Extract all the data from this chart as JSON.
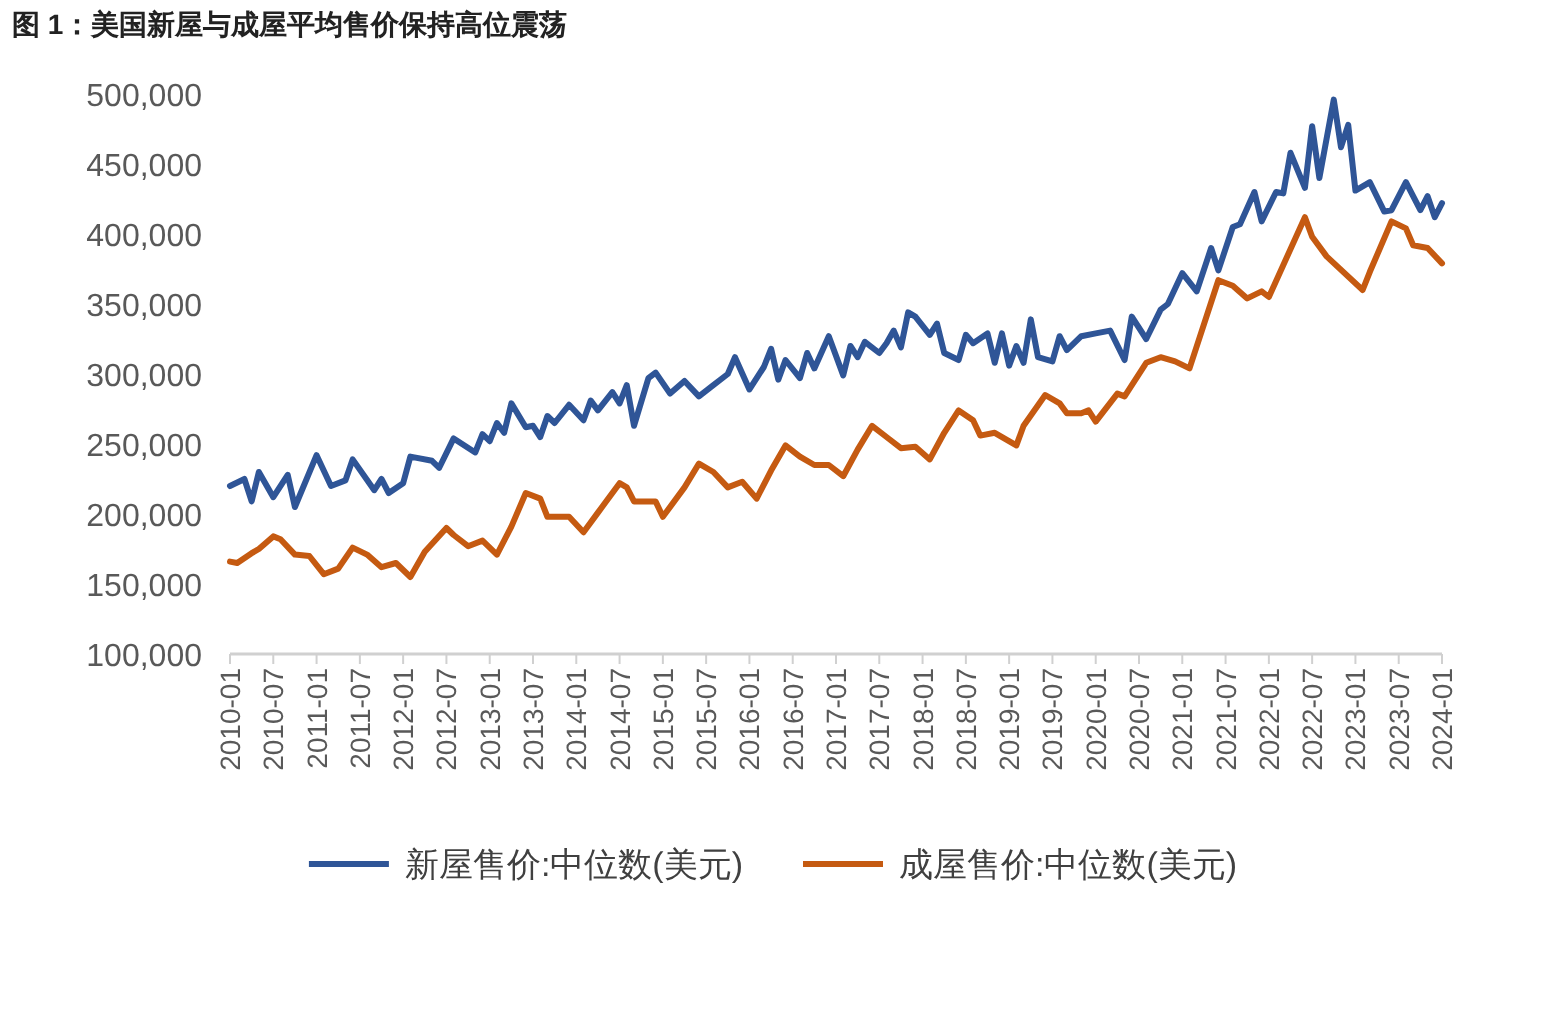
{
  "chart_data": {
    "type": "line",
    "title": "图 1：美国新屋与成屋平均售价保持高位震荡",
    "xlim": [
      "2010-01",
      "2024-01"
    ],
    "xticks": [
      "2010-01",
      "2010-07",
      "2011-01",
      "2011-07",
      "2012-01",
      "2012-07",
      "2013-01",
      "2013-07",
      "2014-01",
      "2014-07",
      "2015-01",
      "2015-07",
      "2016-01",
      "2016-07",
      "2017-01",
      "2017-07",
      "2018-01",
      "2018-07",
      "2019-01",
      "2019-07",
      "2020-01",
      "2020-07",
      "2021-01",
      "2021-07",
      "2022-01",
      "2022-07",
      "2023-01",
      "2023-07",
      "2024-01"
    ],
    "ylim": [
      100000,
      500000
    ],
    "yticks": [
      {
        "value": 100000,
        "label": "100,000"
      },
      {
        "value": 150000,
        "label": "150,000"
      },
      {
        "value": 200000,
        "label": "200,000"
      },
      {
        "value": 250000,
        "label": "250,000"
      },
      {
        "value": 300000,
        "label": "300,000"
      },
      {
        "value": 350000,
        "label": "350,000"
      },
      {
        "value": 400000,
        "label": "400,000"
      },
      {
        "value": 450000,
        "label": "450,000"
      },
      {
        "value": 500000,
        "label": "500,000"
      }
    ],
    "grid": false,
    "legend": "bottom",
    "marker": "none",
    "line_style": "solid",
    "series": [
      {
        "name": "新屋售价:中位数(美元)",
        "color": "#2f5597",
        "x": [
          "2010-01",
          "2010-03",
          "2010-04",
          "2010-05",
          "2010-07",
          "2010-09",
          "2010-10",
          "2011-01",
          "2011-03",
          "2011-05",
          "2011-06",
          "2011-09",
          "2011-10",
          "2011-11",
          "2012-01",
          "2012-02",
          "2012-05",
          "2012-06",
          "2012-08",
          "2012-11",
          "2012-12",
          "2013-01",
          "2013-02",
          "2013-03",
          "2013-04",
          "2013-06",
          "2013-07",
          "2013-08",
          "2013-09",
          "2013-10",
          "2013-12",
          "2014-02",
          "2014-03",
          "2014-04",
          "2014-06",
          "2014-07",
          "2014-08",
          "2014-09",
          "2014-11",
          "2014-12",
          "2015-02",
          "2015-04",
          "2015-06",
          "2015-08",
          "2015-10",
          "2015-11",
          "2016-01",
          "2016-03",
          "2016-04",
          "2016-05",
          "2016-06",
          "2016-08",
          "2016-09",
          "2016-10",
          "2016-12",
          "2017-02",
          "2017-03",
          "2017-04",
          "2017-05",
          "2017-07",
          "2017-08",
          "2017-09",
          "2017-10",
          "2017-11",
          "2017-12",
          "2018-02",
          "2018-03",
          "2018-04",
          "2018-06",
          "2018-07",
          "2018-08",
          "2018-10",
          "2018-11",
          "2018-12",
          "2019-01",
          "2019-02",
          "2019-03",
          "2019-04",
          "2019-05",
          "2019-07",
          "2019-08",
          "2019-09",
          "2019-11",
          "2020-01",
          "2020-03",
          "2020-05",
          "2020-06",
          "2020-08",
          "2020-10",
          "2020-11",
          "2021-01",
          "2021-03",
          "2021-05",
          "2021-06",
          "2021-08",
          "2021-09",
          "2021-11",
          "2021-12",
          "2022-02",
          "2022-03",
          "2022-04",
          "2022-06",
          "2022-07",
          "2022-08",
          "2022-10",
          "2022-11",
          "2022-12",
          "2023-01",
          "2023-03",
          "2023-05",
          "2023-06",
          "2023-08",
          "2023-10",
          "2023-11",
          "2023-12",
          "2024-01"
        ],
        "values": [
          220000,
          225000,
          209000,
          230000,
          212000,
          228000,
          205000,
          242000,
          220000,
          224000,
          239000,
          217000,
          225000,
          215000,
          222000,
          241000,
          238000,
          233000,
          254000,
          244000,
          257000,
          252000,
          265000,
          258000,
          279000,
          262000,
          263000,
          255000,
          270000,
          265000,
          278000,
          267000,
          281000,
          274000,
          287000,
          279000,
          292000,
          263000,
          297000,
          301000,
          286000,
          295000,
          284000,
          292000,
          300000,
          312000,
          289000,
          305000,
          318000,
          296000,
          310000,
          297000,
          315000,
          304000,
          327000,
          299000,
          320000,
          312000,
          323000,
          315000,
          322000,
          331000,
          319000,
          344000,
          341000,
          328000,
          336000,
          315000,
          310000,
          328000,
          322000,
          329000,
          308000,
          329000,
          306000,
          320000,
          308000,
          339000,
          312000,
          309000,
          327000,
          317000,
          327000,
          329000,
          331000,
          310000,
          341000,
          325000,
          346000,
          350000,
          372000,
          359000,
          390000,
          374000,
          405000,
          407000,
          430000,
          409000,
          430000,
          429000,
          458000,
          433000,
          477000,
          440000,
          496000,
          462000,
          478000,
          431000,
          437000,
          416000,
          417000,
          437000,
          417000,
          427000,
          412000,
          422000
        ]
      },
      {
        "name": "成屋售价:中位数(美元)",
        "color": "#c55a11",
        "x": [
          "2010-01",
          "2010-02",
          "2010-04",
          "2010-05",
          "2010-07",
          "2010-08",
          "2010-10",
          "2010-12",
          "2011-02",
          "2011-04",
          "2011-06",
          "2011-08",
          "2011-10",
          "2011-12",
          "2012-02",
          "2012-04",
          "2012-07",
          "2012-08",
          "2012-10",
          "2012-12",
          "2013-02",
          "2013-04",
          "2013-06",
          "2013-08",
          "2013-09",
          "2013-12",
          "2014-02",
          "2014-04",
          "2014-07",
          "2014-08",
          "2014-09",
          "2014-12",
          "2015-01",
          "2015-04",
          "2015-06",
          "2015-08",
          "2015-10",
          "2015-12",
          "2016-02",
          "2016-04",
          "2016-06",
          "2016-08",
          "2016-10",
          "2016-12",
          "2017-02",
          "2017-04",
          "2017-06",
          "2017-08",
          "2017-10",
          "2017-12",
          "2018-02",
          "2018-04",
          "2018-06",
          "2018-08",
          "2018-09",
          "2018-11",
          "2019-02",
          "2019-03",
          "2019-06",
          "2019-08",
          "2019-09",
          "2019-11",
          "2019-12",
          "2020-01",
          "2020-04",
          "2020-05",
          "2020-08",
          "2020-10",
          "2020-12",
          "2021-02",
          "2021-06",
          "2021-08",
          "2021-10",
          "2021-12",
          "2022-01",
          "2022-06",
          "2022-07",
          "2022-09",
          "2023-02",
          "2023-03",
          "2023-06",
          "2023-08",
          "2023-09",
          "2023-11",
          "2024-01"
        ],
        "values": [
          166000,
          165000,
          172000,
          175000,
          184000,
          182000,
          171000,
          170000,
          157000,
          161000,
          176000,
          171000,
          162000,
          165000,
          155000,
          173000,
          190000,
          185000,
          177000,
          181000,
          171000,
          191000,
          215000,
          211000,
          198000,
          198000,
          187000,
          201000,
          222000,
          219000,
          209000,
          209000,
          198000,
          219000,
          236000,
          230000,
          219000,
          223000,
          211000,
          231000,
          249000,
          241000,
          235000,
          235000,
          227000,
          246000,
          263000,
          255000,
          247000,
          248000,
          239000,
          258000,
          274000,
          267000,
          256000,
          258000,
          249000,
          263000,
          285000,
          279000,
          272000,
          272000,
          274000,
          266000,
          286000,
          284000,
          308000,
          312000,
          309000,
          304000,
          367000,
          363000,
          354000,
          359000,
          355000,
          412000,
          398000,
          384000,
          360000,
          373000,
          409000,
          404000,
          392000,
          390000,
          379000
        ]
      }
    ]
  }
}
